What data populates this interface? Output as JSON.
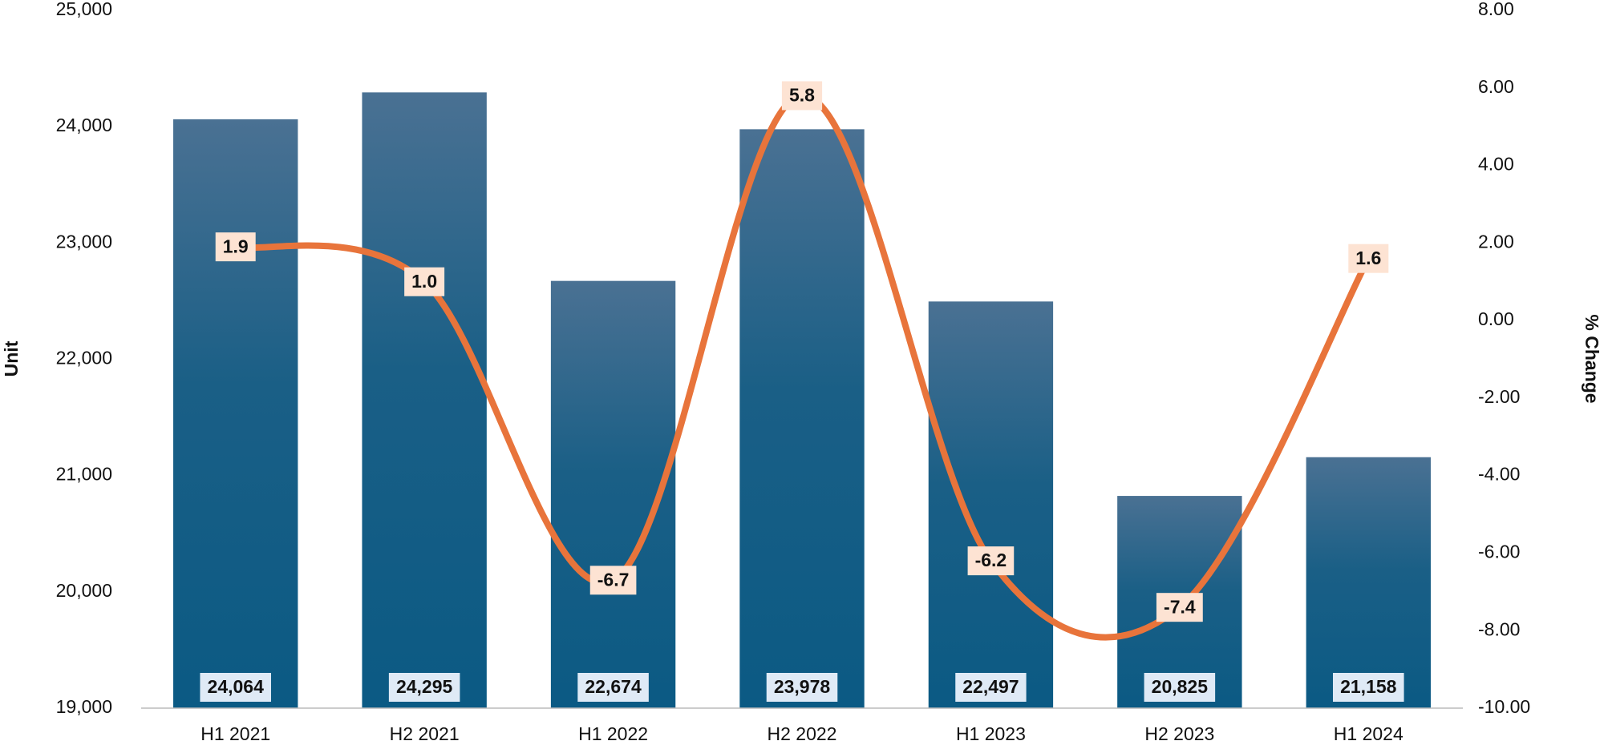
{
  "chart_data": {
    "type": "bar-line",
    "categories": [
      "H1 2021",
      "H2 2021",
      "H1 2022",
      "H2 2022",
      "H1 2023",
      "H2 2023",
      "H1 2024"
    ],
    "series": [
      {
        "type": "bar",
        "color": "#0f5a84",
        "values": [
          24064,
          24295,
          22674,
          23978,
          22497,
          20825,
          21158
        ],
        "value_labels": [
          "24,064",
          "24,295",
          "22,674",
          "23,978",
          "22,497",
          "20,825",
          "21,158"
        ]
      },
      {
        "type": "line",
        "axis": "y2",
        "color": "#e8743b",
        "values": [
          1.9,
          1.0,
          -6.7,
          5.8,
          -6.2,
          -7.4,
          1.6
        ],
        "value_labels": [
          "1.9",
          "1.0",
          "-6.7",
          "5.8",
          "-6.2",
          "-7.4",
          "1.6"
        ]
      }
    ],
    "ylabel": "Unit",
    "y2label": "% Change",
    "ylim": [
      19000,
      25000
    ],
    "yticks": [
      {
        "value": 19000,
        "label": "19,000"
      },
      {
        "value": 20000,
        "label": "20,000"
      },
      {
        "value": 21000,
        "label": "21,000"
      },
      {
        "value": 22000,
        "label": "22,000"
      },
      {
        "value": 23000,
        "label": "23,000"
      },
      {
        "value": 24000,
        "label": "24,000"
      },
      {
        "value": 25000,
        "label": "25,000"
      }
    ],
    "y2lim": [
      -10,
      8
    ],
    "y2ticks": [
      {
        "value": -10,
        "label": "-10.00"
      },
      {
        "value": -8,
        "label": "-8.00"
      },
      {
        "value": -6,
        "label": "-6.00"
      },
      {
        "value": -4,
        "label": "-4.00"
      },
      {
        "value": -2,
        "label": "-2.00"
      },
      {
        "value": 0,
        "label": "0.00"
      },
      {
        "value": 2,
        "label": "2.00"
      },
      {
        "value": 4,
        "label": "4.00"
      },
      {
        "value": 6,
        "label": "6.00"
      },
      {
        "value": 8,
        "label": "8.00"
      }
    ]
  }
}
